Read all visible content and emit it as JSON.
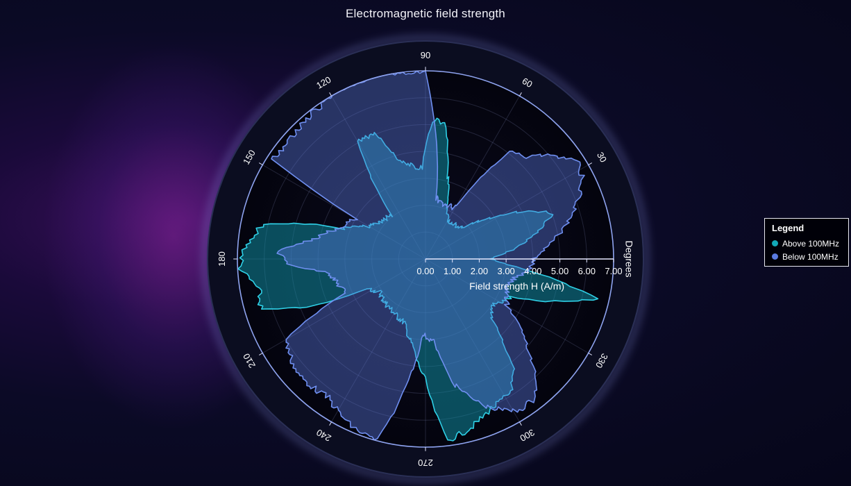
{
  "title": "Electromagnetic field strength",
  "legend": {
    "title": "Legend",
    "items": [
      {
        "label": "Above 100MHz",
        "color": "#12a9b8"
      },
      {
        "label": "Below 100MHz",
        "color": "#5a7be0"
      }
    ]
  },
  "chart_data": {
    "type": "polar-area",
    "title": "Electromagnetic field strength",
    "radial_axis": {
      "title": "Field strength H (A/m)",
      "min": 0,
      "max": 7,
      "ticks": [
        "0.00",
        "1.00",
        "2.00",
        "3.00",
        "4.00",
        "5.00",
        "6.00",
        "7.00"
      ]
    },
    "angular_axis": {
      "title": "Degrees",
      "ticks": [
        "30",
        "60",
        "90",
        "120",
        "150",
        "180",
        "210",
        "240",
        "270",
        "300",
        "330"
      ]
    },
    "series": [
      {
        "name": "Above 100MHz",
        "color": "#12a9b8",
        "points": [
          [
            0,
            2.4
          ],
          [
            10,
            3.8
          ],
          [
            15,
            4.5
          ],
          [
            20,
            5.0
          ],
          [
            25,
            4.2
          ],
          [
            32,
            2.9
          ],
          [
            40,
            1.8
          ],
          [
            55,
            1.6
          ],
          [
            65,
            1.8
          ],
          [
            75,
            3.2
          ],
          [
            82,
            5.1
          ],
          [
            87,
            5.2
          ],
          [
            92,
            3.4
          ],
          [
            98,
            3.5
          ],
          [
            106,
            3.9
          ],
          [
            112,
            5.1
          ],
          [
            120,
            5.0
          ],
          [
            128,
            2.1
          ],
          [
            140,
            2.1
          ],
          [
            150,
            2.4
          ],
          [
            160,
            3.3
          ],
          [
            168,
            6.2
          ],
          [
            178,
            6.8
          ],
          [
            183,
            6.9
          ],
          [
            190,
            6.3
          ],
          [
            197,
            6.4
          ],
          [
            203,
            4.4
          ],
          [
            207,
            2.4
          ],
          [
            216,
            2.1
          ],
          [
            226,
            2.2
          ],
          [
            238,
            2.3
          ],
          [
            252,
            2.5
          ],
          [
            262,
            3.3
          ],
          [
            270,
            4.5
          ],
          [
            277,
            6.8
          ],
          [
            285,
            6.5
          ],
          [
            293,
            6.1
          ],
          [
            302,
            5.9
          ],
          [
            309,
            5.3
          ],
          [
            312,
            4.4
          ],
          [
            318,
            3.3
          ],
          [
            325,
            3.0
          ],
          [
            336,
            3.5
          ],
          [
            343,
            5.4
          ],
          [
            347,
            6.6
          ],
          [
            350,
            5.2
          ],
          [
            356,
            3.0
          ]
        ]
      },
      {
        "name": "Below 100MHz",
        "color": "#5a7be0",
        "points": [
          [
            0,
            4.0
          ],
          [
            10,
            5.0
          ],
          [
            20,
            6.0
          ],
          [
            26,
            6.5
          ],
          [
            33,
            6.8
          ],
          [
            38,
            6.2
          ],
          [
            45,
            5.4
          ],
          [
            52,
            5.0
          ],
          [
            60,
            2.2
          ],
          [
            72,
            2.1
          ],
          [
            80,
            2.3
          ],
          [
            87,
            5.5
          ],
          [
            90,
            7.0
          ],
          [
            97,
            7.0
          ],
          [
            105,
            7.1
          ],
          [
            118,
            7.0
          ],
          [
            132,
            6.8
          ],
          [
            141,
            6.7
          ],
          [
            147,
            6.8
          ],
          [
            150,
            3.0
          ],
          [
            160,
            3.4
          ],
          [
            170,
            4.2
          ],
          [
            177,
            5.5
          ],
          [
            182,
            5.1
          ],
          [
            188,
            3.6
          ],
          [
            196,
            3.4
          ],
          [
            203,
            3.2
          ],
          [
            210,
            6.0
          ],
          [
            222,
            6.4
          ],
          [
            235,
            6.3
          ],
          [
            246,
            6.8
          ],
          [
            255,
            7.0
          ],
          [
            262,
            4.5
          ],
          [
            268,
            2.8
          ],
          [
            276,
            3.1
          ],
          [
            283,
            4.8
          ],
          [
            293,
            6.0
          ],
          [
            301,
            6.6
          ],
          [
            307,
            6.6
          ],
          [
            312,
            6.2
          ],
          [
            316,
            5.5
          ],
          [
            322,
            4.6
          ],
          [
            330,
            3.5
          ],
          [
            340,
            3.2
          ],
          [
            348,
            3.4
          ],
          [
            355,
            3.9
          ]
        ]
      }
    ],
    "grid": true,
    "legend_position": "right"
  }
}
